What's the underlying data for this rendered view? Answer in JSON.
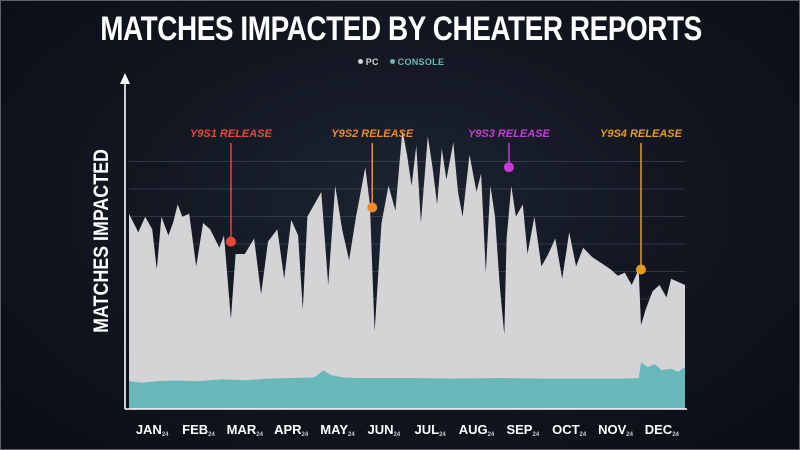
{
  "title": "MATCHES IMPACTED BY CHEATER REPORTS",
  "ylabel": "MATCHES IMPACTED",
  "colors": {
    "pc": "#d4d4d6",
    "console": "#6ab7ba",
    "gridline": "#5b6270",
    "axis": "#ffffff"
  },
  "chart_data": {
    "type": "area",
    "title": "MATCHES IMPACTED BY CHEATER REPORTS",
    "ylabel": "MATCHES IMPACTED",
    "xlabel": "",
    "legend_position": "top-center",
    "grid": true,
    "y_tick_labels": false,
    "ylim": [
      0,
      100
    ],
    "categories": [
      "JAN",
      "FEB",
      "MAR",
      "APR",
      "MAY",
      "JUN",
      "JUL",
      "AUG",
      "SEP",
      "OCT",
      "NOV",
      "DEC"
    ],
    "category_suffix": "24",
    "series": [
      {
        "name": "PC",
        "color": "#d4d4d6",
        "points": [
          [
            0.0,
            63
          ],
          [
            0.2,
            57
          ],
          [
            0.35,
            62
          ],
          [
            0.5,
            58
          ],
          [
            0.6,
            45
          ],
          [
            0.7,
            62
          ],
          [
            0.85,
            56
          ],
          [
            0.95,
            60
          ],
          [
            1.05,
            66
          ],
          [
            1.15,
            62
          ],
          [
            1.3,
            63
          ],
          [
            1.45,
            46
          ],
          [
            1.6,
            60
          ],
          [
            1.75,
            58
          ],
          [
            1.95,
            52
          ],
          [
            2.05,
            56
          ],
          [
            2.2,
            29
          ],
          [
            2.3,
            50
          ],
          [
            2.5,
            50
          ],
          [
            2.7,
            55
          ],
          [
            2.85,
            37
          ],
          [
            3.0,
            54
          ],
          [
            3.2,
            58
          ],
          [
            3.35,
            42
          ],
          [
            3.5,
            61
          ],
          [
            3.65,
            56
          ],
          [
            3.75,
            32
          ],
          [
            3.85,
            62
          ],
          [
            4.0,
            66
          ],
          [
            4.15,
            70
          ],
          [
            4.3,
            40
          ],
          [
            4.45,
            72
          ],
          [
            4.6,
            58
          ],
          [
            4.75,
            48
          ],
          [
            4.9,
            62
          ],
          [
            5.0,
            70
          ],
          [
            5.1,
            78
          ],
          [
            5.2,
            66
          ],
          [
            5.3,
            25
          ],
          [
            5.45,
            60
          ],
          [
            5.6,
            72
          ],
          [
            5.75,
            64
          ],
          [
            5.9,
            90
          ],
          [
            6.0,
            82
          ],
          [
            6.1,
            72
          ],
          [
            6.2,
            85
          ],
          [
            6.3,
            60
          ],
          [
            6.45,
            88
          ],
          [
            6.55,
            78
          ],
          [
            6.65,
            66
          ],
          [
            6.75,
            84
          ],
          [
            6.85,
            74
          ],
          [
            7.0,
            86
          ],
          [
            7.1,
            70
          ],
          [
            7.2,
            62
          ],
          [
            7.35,
            82
          ],
          [
            7.5,
            70
          ],
          [
            7.6,
            76
          ],
          [
            7.7,
            44
          ],
          [
            7.8,
            72
          ],
          [
            7.9,
            62
          ],
          [
            8.0,
            40
          ],
          [
            8.1,
            24
          ],
          [
            8.15,
            55
          ],
          [
            8.25,
            72
          ],
          [
            8.35,
            62
          ],
          [
            8.5,
            66
          ],
          [
            8.6,
            50
          ],
          [
            8.75,
            62
          ],
          [
            8.9,
            46
          ],
          [
            9.05,
            50
          ],
          [
            9.2,
            55
          ],
          [
            9.35,
            42
          ],
          [
            9.5,
            57
          ],
          [
            9.65,
            46
          ],
          [
            9.8,
            52
          ],
          [
            10.0,
            49
          ],
          [
            10.2,
            47
          ],
          [
            10.4,
            45
          ],
          [
            10.55,
            43
          ],
          [
            10.7,
            44
          ],
          [
            10.85,
            40
          ],
          [
            11.0,
            45
          ],
          [
            11.05,
            27
          ],
          [
            11.15,
            32
          ],
          [
            11.3,
            38
          ],
          [
            11.45,
            40
          ],
          [
            11.6,
            36
          ],
          [
            11.7,
            42
          ],
          [
            11.85,
            41
          ],
          [
            12.0,
            40
          ]
        ]
      },
      {
        "name": "CONSOLE",
        "color": "#6ab7ba",
        "points": [
          [
            0.0,
            9
          ],
          [
            0.3,
            8.5
          ],
          [
            0.6,
            9
          ],
          [
            1.0,
            9.2
          ],
          [
            1.5,
            9
          ],
          [
            2.0,
            9.6
          ],
          [
            2.5,
            9.3
          ],
          [
            3.0,
            9.8
          ],
          [
            3.5,
            10
          ],
          [
            4.0,
            10.2
          ],
          [
            4.2,
            12.5
          ],
          [
            4.35,
            11
          ],
          [
            4.6,
            10.2
          ],
          [
            5.0,
            10
          ],
          [
            6.0,
            10
          ],
          [
            7.0,
            9.8
          ],
          [
            8.0,
            10
          ],
          [
            9.0,
            9.8
          ],
          [
            10.0,
            9.8
          ],
          [
            10.7,
            9.8
          ],
          [
            11.0,
            10
          ],
          [
            11.05,
            15
          ],
          [
            11.2,
            13.5
          ],
          [
            11.35,
            14.5
          ],
          [
            11.5,
            12.5
          ],
          [
            11.7,
            13
          ],
          [
            11.85,
            12
          ],
          [
            12.0,
            13.5
          ]
        ]
      }
    ],
    "annotations": [
      {
        "label": "Y9S1 RELEASE",
        "x": 2.2,
        "y": 54,
        "color": "#e8473c"
      },
      {
        "label": "Y9S2 RELEASE",
        "x": 5.25,
        "y": 65,
        "color": "#f08a2a"
      },
      {
        "label": "Y9S3 RELEASE",
        "x": 8.2,
        "y": 78,
        "color": "#c43bd6"
      },
      {
        "label": "Y9S4 RELEASE",
        "x": 11.05,
        "y": 45,
        "color": "#e39b22"
      }
    ]
  }
}
